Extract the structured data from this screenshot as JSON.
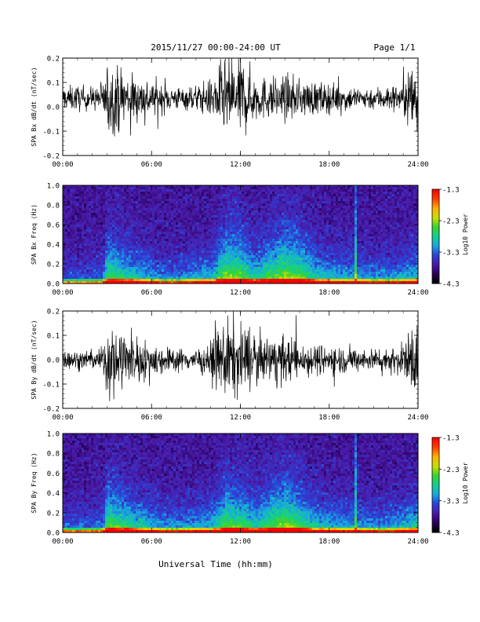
{
  "header": {
    "title": "2015/11/27  00:00-24:00 UT",
    "page": "Page 1/1"
  },
  "xlabel": "Universal Time (hh:mm)",
  "x_ticks": [
    "00:00",
    "06:00",
    "12:00",
    "18:00",
    "24:00"
  ],
  "colorbar": {
    "label": "Log10 Power",
    "ticks": [
      "-1.3",
      "-2.3",
      "-3.3",
      "-4.3"
    ],
    "range": [
      -4.3,
      -1.3
    ],
    "colormap": [
      "#000000",
      "#2b005e",
      "#4a1aa8",
      "#2a44d8",
      "#1aa8e0",
      "#14d08c",
      "#3ad234",
      "#c8e000",
      "#ffb000",
      "#ff4000",
      "#ff0000"
    ]
  },
  "chart_data": [
    {
      "type": "line",
      "name": "bx-waveform",
      "ylabel": "SPA Bx dB/dt (nT/sec)",
      "xlim": [
        0,
        24
      ],
      "ylim": [
        -0.2,
        0.2
      ],
      "y_ticks": [
        "0.2",
        "0.1",
        "0.0",
        "-0.1",
        "-0.2"
      ],
      "baseline": 0.035,
      "envelope_hours": [
        0,
        1,
        2,
        2.7,
        3,
        4,
        5,
        6,
        7,
        8,
        9,
        10,
        10.8,
        11.3,
        11.8,
        12.3,
        13,
        14,
        15,
        16,
        17,
        18,
        19,
        20,
        21,
        22,
        23,
        23.6,
        24
      ],
      "envelope_amplitude": [
        0.06,
        0.07,
        0.06,
        0.08,
        0.2,
        0.16,
        0.12,
        0.1,
        0.07,
        0.06,
        0.07,
        0.1,
        0.2,
        0.2,
        0.22,
        0.2,
        0.12,
        0.11,
        0.12,
        0.1,
        0.09,
        0.08,
        0.07,
        0.06,
        0.06,
        0.07,
        0.08,
        0.22,
        0.2
      ]
    },
    {
      "type": "heatmap",
      "name": "bx-spectrogram",
      "ylabel": "SPA Bx Freq (Hz)",
      "xlim": [
        0,
        24
      ],
      "ylim": [
        0,
        1.0
      ],
      "y_ticks": [
        "1.0",
        "0.8",
        "0.6",
        "0.4",
        "0.2",
        "0.0"
      ],
      "activity_hours": [
        0,
        2.7,
        3,
        5,
        7,
        10,
        11,
        12,
        13,
        14,
        15,
        16,
        17,
        18,
        20,
        22,
        24
      ],
      "activity_level": [
        0.25,
        0.3,
        0.75,
        0.55,
        0.35,
        0.5,
        0.85,
        0.8,
        0.6,
        0.75,
        0.85,
        0.8,
        0.6,
        0.5,
        0.45,
        0.4,
        0.55
      ]
    },
    {
      "type": "line",
      "name": "by-waveform",
      "ylabel": "SPA By dB/dt (nT/sec)",
      "xlim": [
        0,
        24
      ],
      "ylim": [
        -0.2,
        0.2
      ],
      "y_ticks": [
        "0.2",
        "0.1",
        "0.0",
        "-0.1",
        "-0.2"
      ],
      "baseline": 0.0,
      "envelope_hours": [
        0,
        1,
        2,
        2.7,
        3,
        4,
        5,
        6,
        7,
        8,
        9,
        10,
        10.8,
        11.3,
        11.8,
        12.3,
        13,
        14,
        15,
        16,
        17,
        18,
        19,
        20,
        21,
        22,
        23,
        23.6,
        24
      ],
      "envelope_amplitude": [
        0.05,
        0.05,
        0.05,
        0.07,
        0.2,
        0.17,
        0.12,
        0.1,
        0.07,
        0.06,
        0.06,
        0.09,
        0.2,
        0.22,
        0.2,
        0.18,
        0.13,
        0.12,
        0.13,
        0.1,
        0.08,
        0.08,
        0.07,
        0.06,
        0.06,
        0.07,
        0.08,
        0.2,
        0.2
      ]
    },
    {
      "type": "heatmap",
      "name": "by-spectrogram",
      "ylabel": "SPA By Freq (Hz)",
      "xlim": [
        0,
        24
      ],
      "ylim": [
        0,
        1.0
      ],
      "y_ticks": [
        "1.0",
        "0.8",
        "0.6",
        "0.4",
        "0.2",
        "0.0"
      ],
      "activity_hours": [
        0,
        2.7,
        3,
        5,
        7,
        10,
        11,
        12,
        13,
        14,
        15,
        16,
        17,
        18,
        20,
        22,
        24
      ],
      "activity_level": [
        0.3,
        0.35,
        0.8,
        0.6,
        0.4,
        0.5,
        0.8,
        0.75,
        0.6,
        0.75,
        0.85,
        0.75,
        0.55,
        0.5,
        0.45,
        0.4,
        0.6
      ]
    }
  ]
}
